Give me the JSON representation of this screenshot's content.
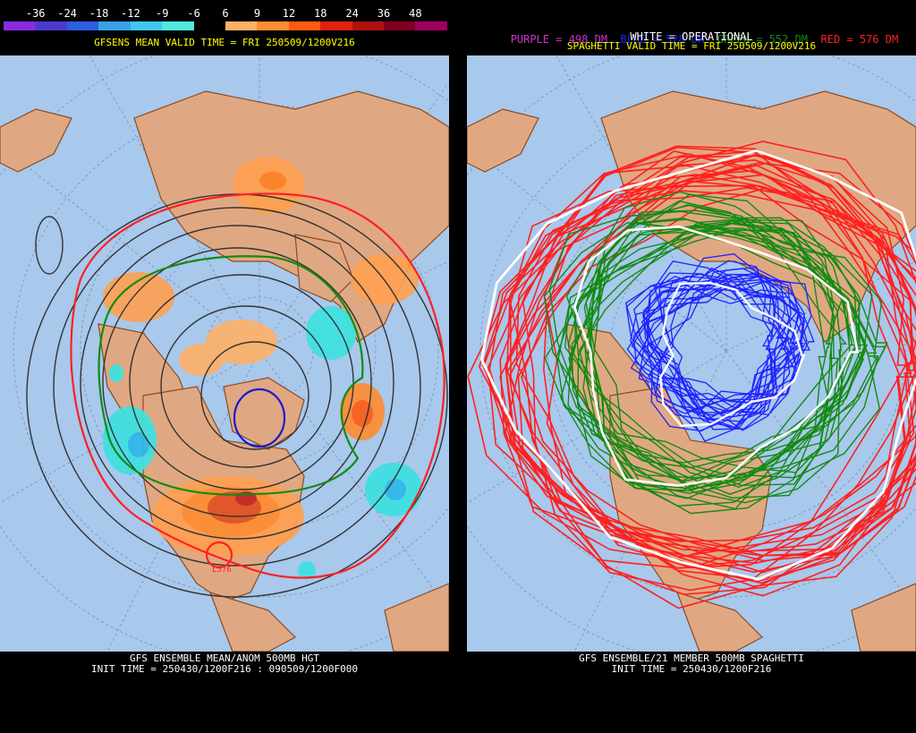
{
  "left": {
    "colorbar": {
      "labels": [
        "-36",
        "-24",
        "-18",
        "-12",
        "-9",
        "-6",
        "6",
        "9",
        "12",
        "18",
        "24",
        "36",
        "48"
      ],
      "colors": [
        "#8a2be2",
        "#4b3acf",
        "#2e5fe0",
        "#3aa0e8",
        "#40c8f0",
        "#50e8e0",
        "#000000",
        "#ffb066",
        "#ff8c30",
        "#ff5a10",
        "#e02010",
        "#b01010",
        "#800020",
        "#a00060"
      ]
    },
    "valid_time": "GFSENS MEAN VALID TIME = FRI 250509/1200V216",
    "footer_line1": "GFS ENSEMBLE MEAN/ANOM 500MB HGT",
    "footer_line2": "INIT TIME = 250430/1200F216 : 090509/1200F000",
    "map_label": "L576"
  },
  "right": {
    "legend": {
      "purple": "PURPLE = 498 DM",
      "blue": "BLUE = 528 DM",
      "green": "GREEN = 552 DM",
      "red": "RED = 576 DM",
      "white": "WHITE = OPERATIONAL",
      "colors": {
        "purple": "#cc33cc",
        "blue": "#2222ff",
        "green": "#138a13",
        "red": "#ff2020",
        "white": "#ffffff"
      }
    },
    "valid_time": "SPAGHETTI VALID TIME = FRI 250509/1200V216",
    "footer_line1": "GFS ENSEMBLE/21 MEMBER 500MB SPAGHETTI",
    "footer_line2": "INIT TIME = 250430/1200F216"
  }
}
